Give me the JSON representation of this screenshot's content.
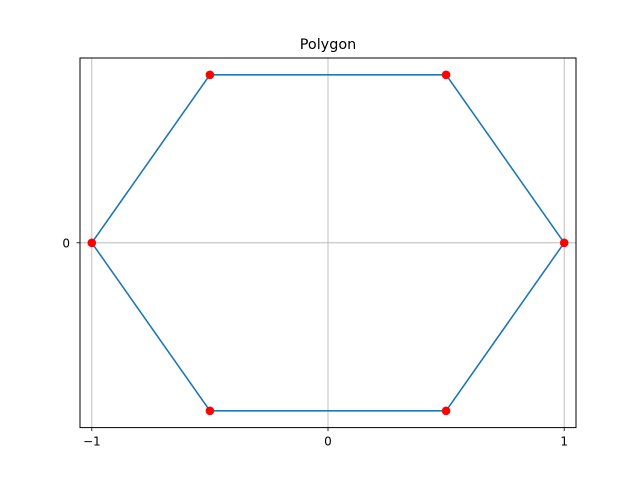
{
  "chart_data": {
    "type": "line",
    "title": "Polygon",
    "xlabel": "",
    "ylabel": "",
    "xlim": [
      -1.05,
      1.05
    ],
    "ylim": [
      -0.9526,
      0.9526
    ],
    "grid": true,
    "x_ticks": [
      {
        "value": -1,
        "label": "−1"
      },
      {
        "value": 0,
        "label": "0"
      },
      {
        "value": 1,
        "label": "1"
      }
    ],
    "y_ticks": [
      {
        "value": 0,
        "label": "0"
      }
    ],
    "series": [
      {
        "closed": true,
        "line_color": "#1f77b4",
        "marker_color": "#ff0000",
        "points": [
          {
            "x": 1.0,
            "y": 0.0
          },
          {
            "x": 0.5,
            "y": 0.866
          },
          {
            "x": -0.5,
            "y": 0.866
          },
          {
            "x": -1.0,
            "y": 0.0
          },
          {
            "x": -0.5,
            "y": -0.866
          },
          {
            "x": 0.5,
            "y": -0.866
          }
        ]
      }
    ]
  }
}
